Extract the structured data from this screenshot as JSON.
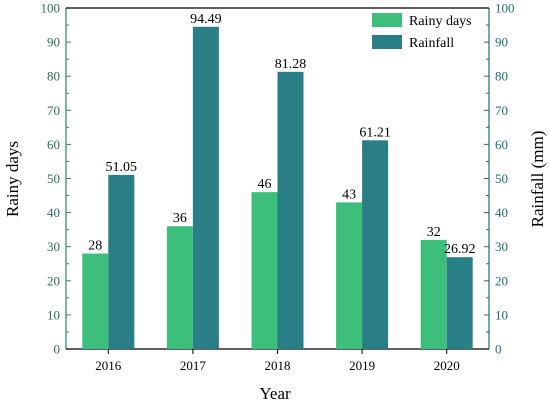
{
  "chart_data": {
    "type": "bar",
    "categories": [
      "2016",
      "2017",
      "2018",
      "2019",
      "2020"
    ],
    "series": [
      {
        "name": "Rainy days",
        "values": [
          28,
          36,
          46,
          43,
          32
        ],
        "color": "#3dbf7c",
        "axis": "left"
      },
      {
        "name": "Rainfall",
        "values": [
          51.05,
          94.49,
          81.28,
          61.21,
          26.92
        ],
        "color": "#2a7f86",
        "axis": "right"
      }
    ],
    "data_labels": [
      [
        "28",
        "36",
        "46",
        "43",
        "32"
      ],
      [
        "51.05",
        "94.49",
        "81.28",
        "61.21",
        "26.92"
      ]
    ],
    "xlabel": "Year",
    "ylabel_left": "Rainy days",
    "ylabel_right": "Rainfall (mm)",
    "ylim_left": [
      0,
      100
    ],
    "ylim_right": [
      0,
      100
    ],
    "y_ticks": [
      "0",
      "10",
      "20",
      "30",
      "40",
      "50",
      "60",
      "70",
      "80",
      "90",
      "100"
    ],
    "legend_position": "top-right",
    "grid": false,
    "left_axis_color": "#2d8a5a",
    "right_axis_color": "#1f6e6e"
  }
}
